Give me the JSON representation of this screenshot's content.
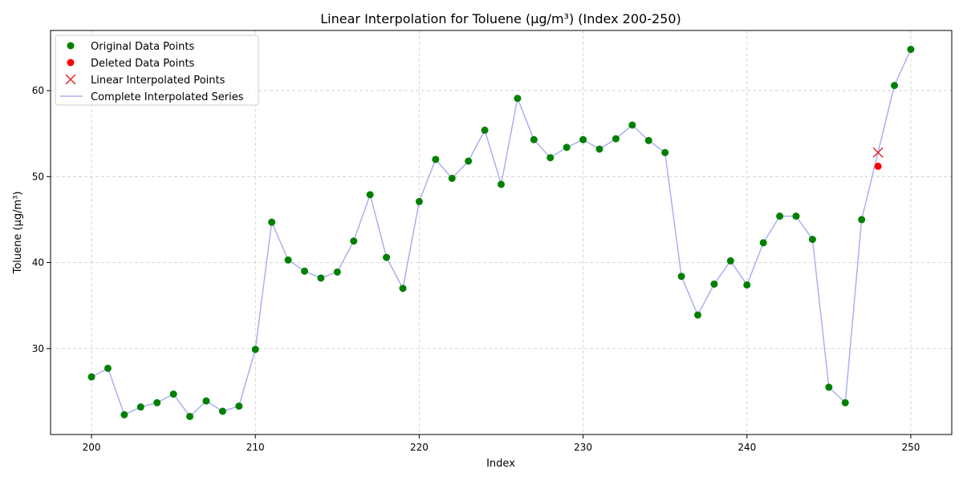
{
  "chart_data": {
    "type": "line",
    "title": "Linear Interpolation for Toluene (µg/m³) (Index 200-250)",
    "xlabel": "Index",
    "ylabel": "Toluene (µg/m³)",
    "xlim": [
      197.5,
      252.5
    ],
    "ylim": [
      20.0,
      67.0
    ],
    "xticks": [
      200,
      210,
      220,
      230,
      240,
      250
    ],
    "yticks": [
      30,
      40,
      50,
      60
    ],
    "grid": true,
    "legend_position": "top-left",
    "colors": {
      "original": "#008000",
      "deleted": "#ff0000",
      "interpolated_marker": "#e8202a",
      "series_line": "#aab0f0",
      "grid": "#cccccc"
    },
    "legend": [
      {
        "label": "Original Data Points",
        "kind": "dot",
        "color": "#008000"
      },
      {
        "label": "Deleted Data Points",
        "kind": "dot",
        "color": "#ff0000"
      },
      {
        "label": "Linear Interpolated Points",
        "kind": "x",
        "color": "#e8202a"
      },
      {
        "label": "Complete Interpolated Series",
        "kind": "line",
        "color": "#aab0f0"
      }
    ],
    "series": [
      {
        "name": "Original Data Points",
        "x": [
          200,
          201,
          202,
          203,
          204,
          205,
          206,
          207,
          208,
          209,
          210,
          211,
          212,
          213,
          214,
          215,
          216,
          217,
          218,
          219,
          220,
          221,
          222,
          223,
          224,
          225,
          226,
          227,
          228,
          229,
          230,
          231,
          232,
          233,
          234,
          235,
          236,
          237,
          238,
          239,
          240,
          241,
          242,
          243,
          244,
          245,
          246,
          247,
          249,
          250
        ],
        "y": [
          26.7,
          27.7,
          22.3,
          23.2,
          23.7,
          24.7,
          22.1,
          23.9,
          22.7,
          23.3,
          29.9,
          44.7,
          40.3,
          39.0,
          38.2,
          38.9,
          42.5,
          47.9,
          40.6,
          37.0,
          47.1,
          52.0,
          49.8,
          51.8,
          55.4,
          49.1,
          59.1,
          54.3,
          52.2,
          53.4,
          54.3,
          53.2,
          54.4,
          56.0,
          54.2,
          52.8,
          38.4,
          33.9,
          37.5,
          40.2,
          37.4,
          42.3,
          45.4,
          45.4,
          42.7,
          25.5,
          23.7,
          45.0,
          60.6,
          64.8
        ]
      },
      {
        "name": "Deleted Data Points",
        "x": [
          248
        ],
        "y": [
          51.2
        ]
      },
      {
        "name": "Linear Interpolated Points",
        "x": [
          248
        ],
        "y": [
          52.8
        ]
      },
      {
        "name": "Complete Interpolated Series",
        "x": [
          200,
          201,
          202,
          203,
          204,
          205,
          206,
          207,
          208,
          209,
          210,
          211,
          212,
          213,
          214,
          215,
          216,
          217,
          218,
          219,
          220,
          221,
          222,
          223,
          224,
          225,
          226,
          227,
          228,
          229,
          230,
          231,
          232,
          233,
          234,
          235,
          236,
          237,
          238,
          239,
          240,
          241,
          242,
          243,
          244,
          245,
          246,
          247,
          248,
          249,
          250
        ],
        "y": [
          26.7,
          27.7,
          22.3,
          23.2,
          23.7,
          24.7,
          22.1,
          23.9,
          22.7,
          23.3,
          29.9,
          44.7,
          40.3,
          39.0,
          38.2,
          38.9,
          42.5,
          47.9,
          40.6,
          37.0,
          47.1,
          52.0,
          49.8,
          51.8,
          55.4,
          49.1,
          59.1,
          54.3,
          52.2,
          53.4,
          54.3,
          53.2,
          54.4,
          56.0,
          54.2,
          52.8,
          38.4,
          33.9,
          37.5,
          40.2,
          37.4,
          42.3,
          45.4,
          45.4,
          42.7,
          25.5,
          23.7,
          45.0,
          52.8,
          60.6,
          64.8
        ]
      }
    ]
  }
}
